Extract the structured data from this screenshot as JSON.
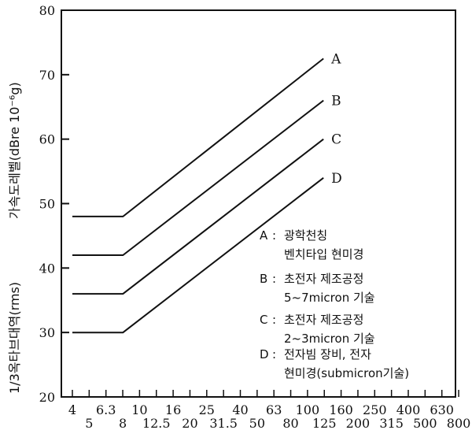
{
  "chart_data": {
    "type": "line",
    "ylabel": "1/3옥타브대역(rms) 가속도레벨(dBre 10⁻⁶g)",
    "ylabel_parts": {
      "lower": "1/3옥타브대역(rms)",
      "upper": "가속도레벨(dBre 10⁻⁶g)"
    },
    "ylim": [
      20,
      80
    ],
    "yticks": [
      20,
      30,
      40,
      50,
      60,
      70,
      80
    ],
    "x_tick_labels_top": [
      "4",
      "6.3",
      "10",
      "16",
      "25",
      "40",
      "63",
      "100",
      "160",
      "250",
      "400",
      "630"
    ],
    "x_tick_labels_bottom": [
      "5",
      "8",
      "12.5",
      "20",
      "31.5",
      "50",
      "80",
      "125",
      "200",
      "315",
      "500",
      "800"
    ],
    "x_scale": "log (1/3 octave bands)",
    "grid": false,
    "series": [
      {
        "name": "A",
        "x": [
          4,
          8,
          125
        ],
        "y": [
          48,
          48,
          72.5
        ]
      },
      {
        "name": "B",
        "x": [
          4,
          8,
          125
        ],
        "y": [
          42,
          42,
          66
        ]
      },
      {
        "name": "C",
        "x": [
          4,
          8,
          125
        ],
        "y": [
          36,
          36,
          60
        ]
      },
      {
        "name": "D",
        "x": [
          4,
          8,
          125
        ],
        "y": [
          30,
          30,
          54
        ]
      }
    ],
    "legend": {
      "placement": "bottom-right",
      "entries": [
        {
          "key": "A",
          "sep": ":",
          "lines": [
            "광학천칭",
            "벤치타입 현미경"
          ]
        },
        {
          "key": "B",
          "sep": ":",
          "lines": [
            "초전자 제조공정",
            "5~7micron 기술"
          ]
        },
        {
          "key": "C",
          "sep": ":",
          "lines": [
            "초전자 제조공정",
            "2~3micron 기술"
          ]
        },
        {
          "key": "D",
          "sep": ":",
          "lines": [
            "전자빔 장비, 전자",
            "현미경(submicron기술)"
          ]
        }
      ]
    }
  }
}
